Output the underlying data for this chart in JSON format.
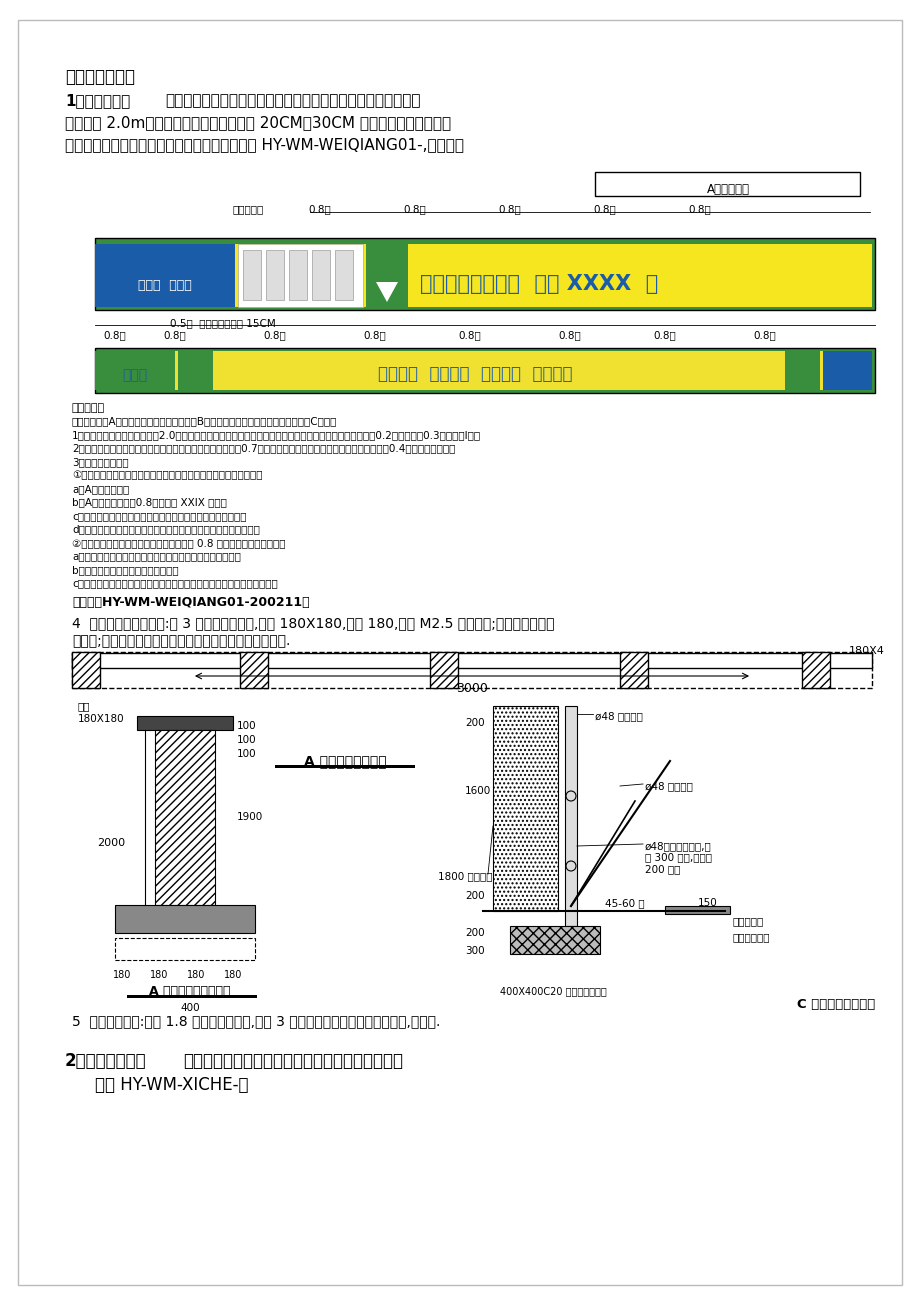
{
  "bg_color": "#ffffff",
  "page_width": 9.2,
  "page_height": 13.02,
  "text_color": "#000000",
  "fence_green": "#388e3c",
  "section_title": "一、场容场貌：",
  "item1_bold": "1．围墙设置：",
  "fig_number": "『图号：HY-WM-WEIQIANG01-200211』",
  "para4_line1": "4  实心砖围墙墙嵩设置:每 3 米设置一道砖嵩,宽度 180X180,墙宽 180,使用 M2.5 砂浆牀筑;围墙基础应置于",
  "para4_line2": "老土上;特櫠情况应由项目技术负责人编制专门的设计方案.",
  "para5_text": "5  活动围墙设置:使用 1.8 米胶合板作遮挡,每隔 3 米设置一道竖向加固立杆及斜撑,如上图.",
  "notes_text": [
    "『围墙』：",
    "围墙为砖砌（A型）或可置复使用的金属式（B型）两种，特别临近下使用胶合板式（C型）。",
    "1、围墙规格：围墙高度统一为2.0米，如地方特有规定的，按地方规定：背景颜色为米黄色，其中围墙上端0.2米高，下端0.3米高为绻I色。",
    "2、围墙标准组合：标志为绻色，字体为蓝色，标志尺寸高度0.7米；位置居于白色墙体正中，距上下绻色边均为0.4米，字体为隶书。",
    "3、围墙组合形式：",
    "①、围墙文字内容顺序：根据围墙长短，应遵照加下优先保证顺序：",
    "a、A式标准组合：",
    "b、A式标准组合：穰0.8米高承建 XXIX 工程：",
    "c、集团标语「开拓创新，产业报国，打造精品，服务顾客」：",
    "d、公益性文字，如城监部门要求的广告「美我厦门，美化繁岛」：",
    "②、各条标语间用集团标志隔开，左右间距 0.8 米。可选用的标语如下：",
    "a、落实责任，强化预防，持续改进，确保生产安全与健康：",
    "b、知识管理，质量为本，顾客至上：",
    "c、我们的品质给您永恒的信任，品质是质量，品质是安全，品质是服务。"
  ],
  "item2_fig": "图号 HY-WM-XICHE-："
}
